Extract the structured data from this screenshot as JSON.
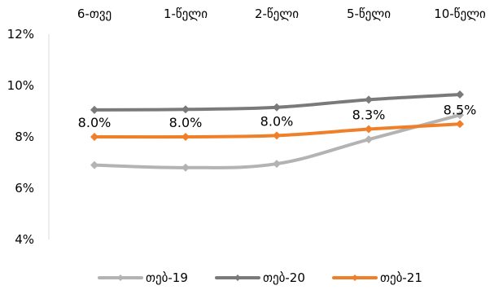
{
  "chart_data": {
    "type": "line",
    "categories": [
      "6-თვე",
      "1-წელი",
      "2-წელი",
      "5-წელი",
      "10-წელი"
    ],
    "x_axis_position": "top",
    "ylim": [
      4,
      12
    ],
    "y_ticks": [
      4,
      6,
      8,
      10,
      12
    ],
    "y_tick_labels": [
      "4%",
      "6%",
      "8%",
      "10%",
      "12%"
    ],
    "grid": false,
    "legend_position": "bottom",
    "series": [
      {
        "name": "თებ-19",
        "values": [
          6.9,
          6.8,
          6.95,
          7.9,
          8.85
        ],
        "color": "#b3b3b3",
        "data_labels": null
      },
      {
        "name": "თებ-20",
        "values": [
          9.05,
          9.07,
          9.15,
          9.45,
          9.65
        ],
        "color": "#7a7a7a",
        "data_labels": null
      },
      {
        "name": "თებ-21",
        "values": [
          8.0,
          8.0,
          8.05,
          8.3,
          8.5
        ],
        "color": "#f07f2a",
        "data_labels": [
          "8.0%",
          "8.0%",
          "8.0%",
          "8.3%",
          "8.5%"
        ]
      }
    ]
  }
}
